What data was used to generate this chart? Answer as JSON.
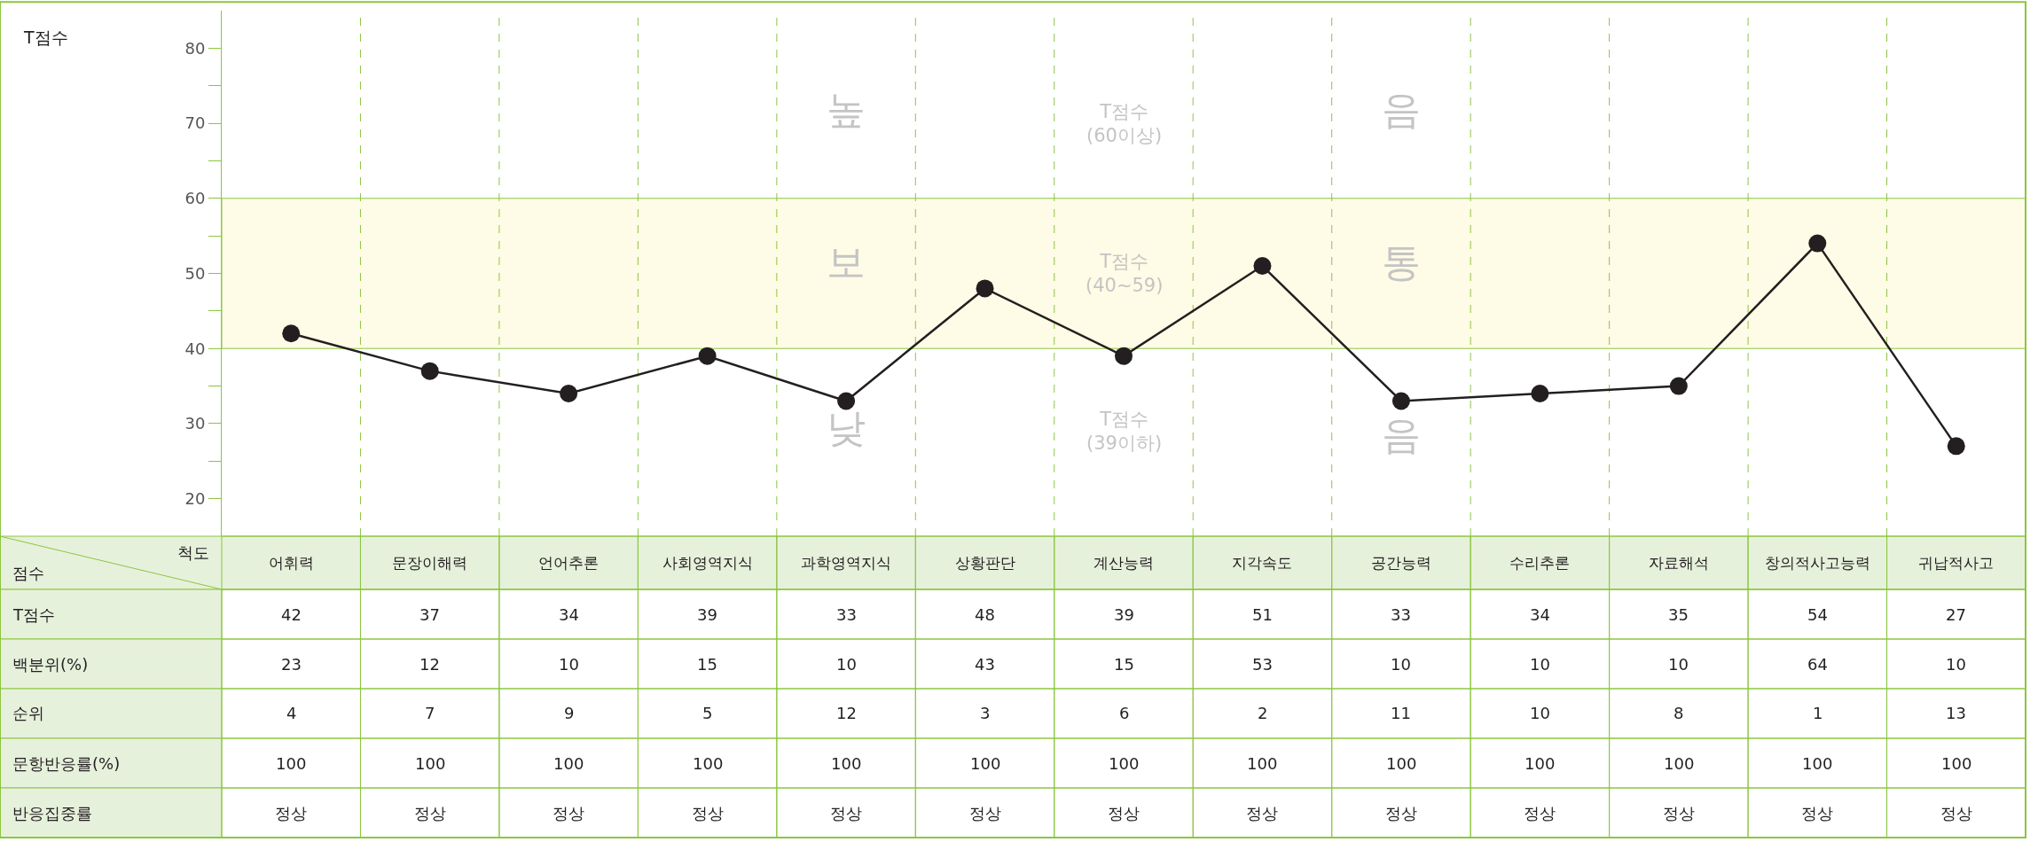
{
  "chart_data": [
    {
      "type": "line",
      "categories": [
        "어휘력",
        "문장이해력",
        "언어추론",
        "사회영역지식",
        "과학영역지식",
        "상황판단",
        "계산능력",
        "지각속도",
        "공간능력",
        "수리추론",
        "자료해석",
        "창의적사고능력",
        "귀납적사고"
      ],
      "series": [
        {
          "name": "T점수",
          "color": "#231f20",
          "values": [
            42,
            37,
            34,
            39,
            33,
            48,
            39,
            51,
            33,
            34,
            35,
            54,
            27
          ]
        }
      ],
      "ylim": [
        15,
        85
      ],
      "yticks": [
        20,
        {
          "value": 25,
          "label": null
        },
        30,
        {
          "value": 35,
          "label": null
        },
        40,
        {
          "value": 45,
          "label": null
        },
        50,
        {
          "value": 55,
          "label": null
        },
        60,
        {
          "value": 65,
          "label": null
        },
        70,
        {
          "value": 75,
          "label": null
        },
        80
      ],
      "bands": [
        {
          "axis": "y",
          "from": 40,
          "to": 60,
          "label": "T점수\n(40~59)",
          "color": "#fefbe6"
        }
      ],
      "annotations": [
        "T점수",
        "척도",
        "점수",
        "높",
        "음",
        "T점수\n(60이상)",
        "보",
        "통",
        "낮",
        "음",
        "T점수\n(39이하)"
      ],
      "grid": "x",
      "legend": false,
      "marker": "circle",
      "line_style": "solid",
      "tick_labels": "y",
      "data_labels": true
    },
    {
      "type": "other",
      "annotations": [
        "백분위(%)",
        "23",
        "12",
        "10",
        "15",
        "10",
        "43",
        "15",
        "53",
        "10",
        "10",
        "10",
        "64",
        "10",
        "순위",
        "4",
        "7",
        "9",
        "5",
        "12",
        "3",
        "6",
        "2",
        "11",
        "10",
        "8",
        "1",
        "13",
        "문항반응률(%)",
        "100",
        "100",
        "100",
        "100",
        "100",
        "100",
        "100",
        "100",
        "100",
        "100",
        "100",
        "100",
        "100",
        "반응집중률",
        "정상",
        "정상",
        "정상",
        "정상",
        "정상",
        "정상",
        "정상",
        "정상",
        "정상",
        "정상",
        "정상",
        "정상",
        "정상"
      ]
    }
  ]
}
